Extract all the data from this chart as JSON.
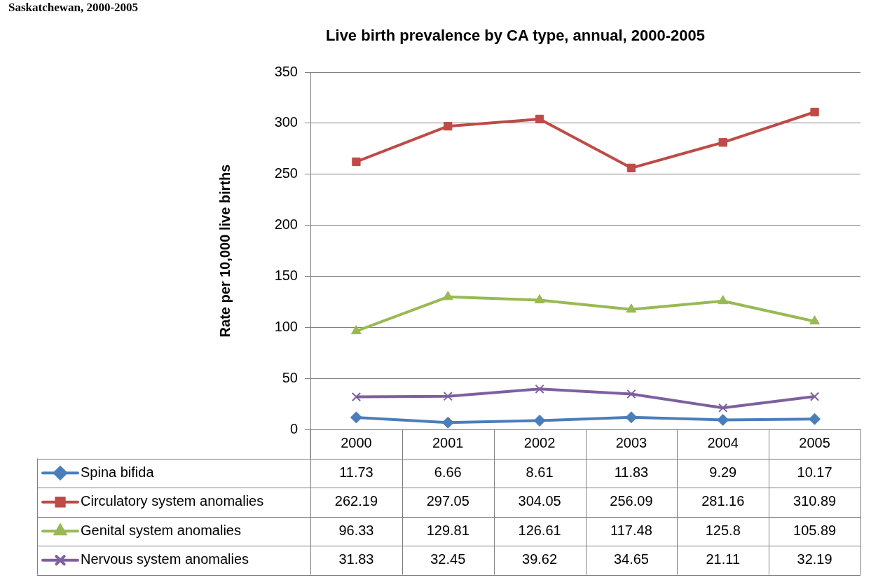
{
  "chart_data": {
    "type": "line",
    "title": "Live birth prevalence by CA type, annual, 2000-2005",
    "ylabel": "Rate per 10,000 live births",
    "annotations": [
      "Saskatchewan, 2000-2005"
    ],
    "categories": [
      "2000",
      "2001",
      "2002",
      "2003",
      "2004",
      "2005"
    ],
    "series": [
      {
        "name": "Spina bifida",
        "color": "#4a7ebb",
        "marker": "diamond",
        "values": [
          11.73,
          6.66,
          8.61,
          11.83,
          9.29,
          10.17
        ]
      },
      {
        "name": "Circulatory system anomalies",
        "color": "#be4b48",
        "marker": "square",
        "values": [
          262.19,
          297.05,
          304.05,
          256.09,
          281.16,
          310.89
        ]
      },
      {
        "name": "Genital system anomalies",
        "color": "#98b954",
        "marker": "triangle",
        "values": [
          96.33,
          129.81,
          126.61,
          117.48,
          125.8,
          105.89
        ]
      },
      {
        "name": "Nervous system anomalies",
        "color": "#7d60a0",
        "marker": "cross",
        "values": [
          31.83,
          32.45,
          39.62,
          34.65,
          21.11,
          32.19
        ]
      }
    ],
    "ylim": [
      0,
      350
    ],
    "yticks": [
      0,
      50,
      100,
      150,
      200,
      250,
      300,
      350
    ],
    "grid": "y",
    "legend": "bottom",
    "data_labels": true
  }
}
